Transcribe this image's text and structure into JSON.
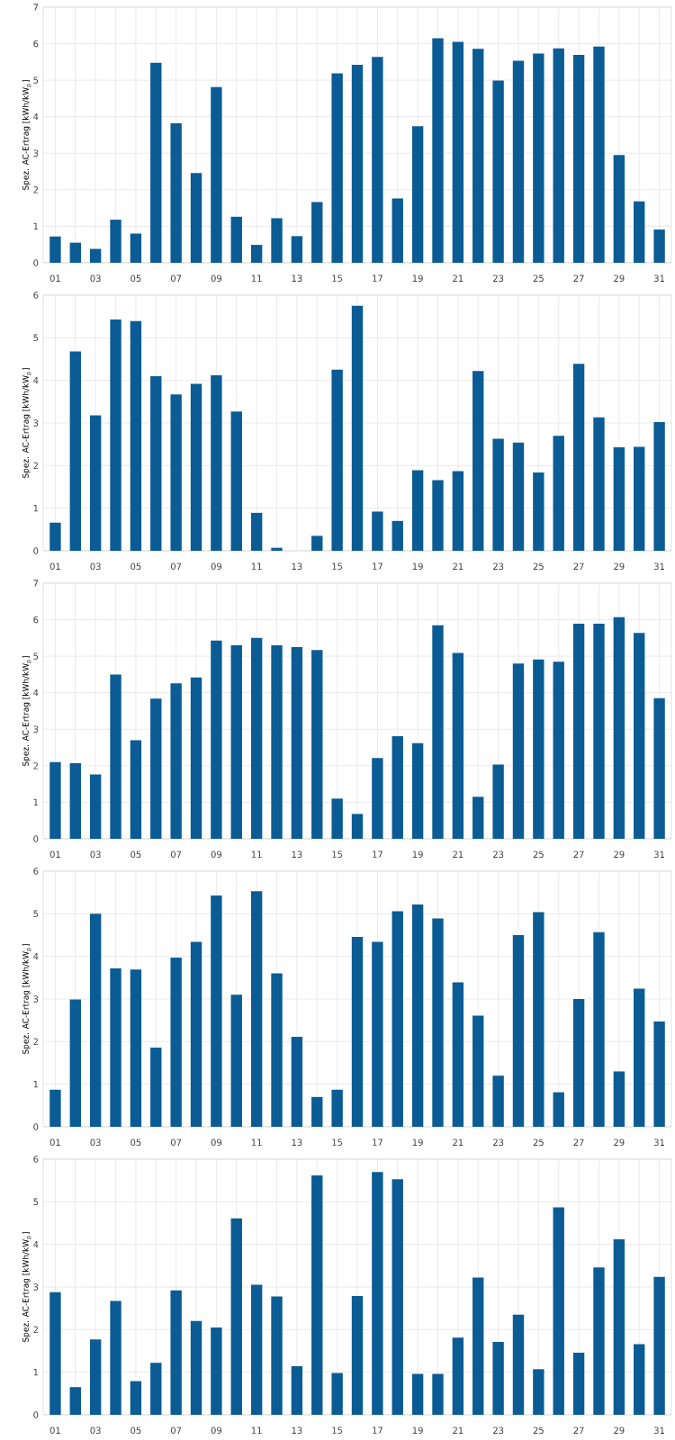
{
  "chart_data": [
    {
      "type": "bar",
      "ylabel": "Spez. AC-Ertrag [kWh/kW$_{p}$]",
      "categories": [
        "01",
        null,
        "03",
        null,
        "05",
        null,
        "07",
        null,
        "09",
        null,
        "11",
        null,
        "13",
        null,
        "15",
        null,
        "17",
        null,
        "19",
        null,
        "21",
        null,
        "23",
        null,
        "25",
        null,
        "27",
        null,
        "29",
        null,
        "31"
      ],
      "color": "#0b5c94",
      "ylim": [
        0,
        7
      ],
      "yticks": [
        0,
        1,
        2,
        3,
        4,
        5,
        6,
        7
      ],
      "grid": true,
      "values": [
        0.72,
        0.55,
        0.38,
        1.18,
        0.8,
        5.48,
        3.82,
        2.46,
        4.81,
        1.26,
        0.49,
        1.22,
        0.73,
        1.66,
        5.19,
        5.42,
        5.64,
        1.76,
        3.74,
        6.15,
        6.05,
        5.86,
        4.99,
        5.53,
        5.73,
        5.87,
        5.69,
        5.92,
        2.95,
        1.68,
        0.91
      ]
    },
    {
      "type": "bar",
      "ylabel": "Spez. AC-Ertrag [kWh/kW$_{p}$]",
      "categories": [
        "01",
        null,
        "03",
        null,
        "05",
        null,
        "07",
        null,
        "09",
        null,
        "11",
        null,
        "13",
        null,
        "15",
        null,
        "17",
        null,
        "19",
        null,
        "21",
        null,
        "23",
        null,
        "25",
        null,
        "27",
        null,
        "29",
        null,
        "31"
      ],
      "color": "#0b5c94",
      "ylim": [
        0,
        6
      ],
      "yticks": [
        0,
        1,
        2,
        3,
        4,
        5,
        6
      ],
      "grid": true,
      "values": [
        0.66,
        4.68,
        3.18,
        5.43,
        5.39,
        4.1,
        3.67,
        3.92,
        4.12,
        3.27,
        0.89,
        0.07,
        0,
        0.35,
        4.25,
        5.75,
        0.92,
        0.7,
        1.89,
        1.66,
        1.87,
        4.22,
        2.63,
        2.54,
        1.84,
        2.7,
        4.39,
        3.13,
        2.43,
        2.44,
        3.02
      ]
    },
    {
      "type": "bar",
      "ylabel": "Spez. AC-Ertrag [kWh/kW$_{p}$]",
      "categories": [
        "01",
        null,
        "03",
        null,
        "05",
        null,
        "07",
        null,
        "09",
        null,
        "11",
        null,
        "13",
        null,
        "15",
        null,
        "17",
        null,
        "19",
        null,
        "21",
        null,
        "23",
        null,
        "25",
        null,
        "27",
        null,
        "29",
        null,
        "31"
      ],
      "color": "#0b5c94",
      "ylim": [
        0,
        7
      ],
      "yticks": [
        0,
        1,
        2,
        3,
        4,
        5,
        6,
        7
      ],
      "grid": true,
      "values": [
        2.1,
        2.07,
        1.76,
        4.5,
        2.7,
        3.84,
        4.26,
        4.42,
        5.43,
        5.3,
        5.5,
        5.3,
        5.25,
        5.17,
        1.1,
        0.68,
        2.21,
        2.81,
        2.62,
        5.85,
        5.09,
        1.15,
        2.03,
        4.8,
        4.91,
        4.85,
        5.89,
        5.89,
        6.07,
        5.64,
        3.85
      ]
    },
    {
      "type": "bar",
      "ylabel": "Spez. AC-Ertrag [kWh/kW$_{p}$]",
      "categories": [
        "01",
        null,
        "03",
        null,
        "05",
        null,
        "07",
        null,
        "09",
        null,
        "11",
        null,
        "13",
        null,
        "15",
        null,
        "17",
        null,
        "19",
        null,
        "21",
        null,
        "23",
        null,
        "25",
        null,
        "27",
        null,
        "29",
        null,
        "31"
      ],
      "color": "#0b5c94",
      "ylim": [
        0,
        6
      ],
      "yticks": [
        0,
        1,
        2,
        3,
        4,
        5,
        6
      ],
      "grid": true,
      "values": [
        0.87,
        2.99,
        5.0,
        3.72,
        3.69,
        1.86,
        3.97,
        4.34,
        5.43,
        3.1,
        5.53,
        3.6,
        2.11,
        0.7,
        0.87,
        4.46,
        4.34,
        5.06,
        5.22,
        4.89,
        3.39,
        2.61,
        1.2,
        4.5,
        5.04,
        0.81,
        3.0,
        4.57,
        1.3,
        3.24,
        2.47
      ]
    },
    {
      "type": "bar",
      "ylabel": "Spez. AC-Ertrag [kWh/kW$_{p}$]",
      "categories": [
        "01",
        null,
        "03",
        null,
        "05",
        null,
        "07",
        null,
        "09",
        null,
        "11",
        null,
        "13",
        null,
        "15",
        null,
        "17",
        null,
        "19",
        null,
        "21",
        null,
        "23",
        null,
        "25",
        null,
        "27",
        null,
        "29",
        null,
        "31"
      ],
      "color": "#0b5c94",
      "ylim": [
        0,
        6
      ],
      "yticks": [
        0,
        1,
        2,
        3,
        4,
        5,
        6
      ],
      "grid": true,
      "values": [
        2.88,
        0.65,
        1.77,
        2.67,
        0.79,
        1.22,
        2.92,
        2.2,
        2.05,
        4.61,
        3.05,
        2.78,
        1.14,
        5.62,
        0.98,
        2.79,
        5.7,
        5.53,
        0.96,
        0.96,
        1.81,
        3.22,
        1.71,
        2.35,
        1.07,
        4.87,
        1.46,
        3.46,
        4.12,
        1.66,
        3.24
      ]
    }
  ]
}
